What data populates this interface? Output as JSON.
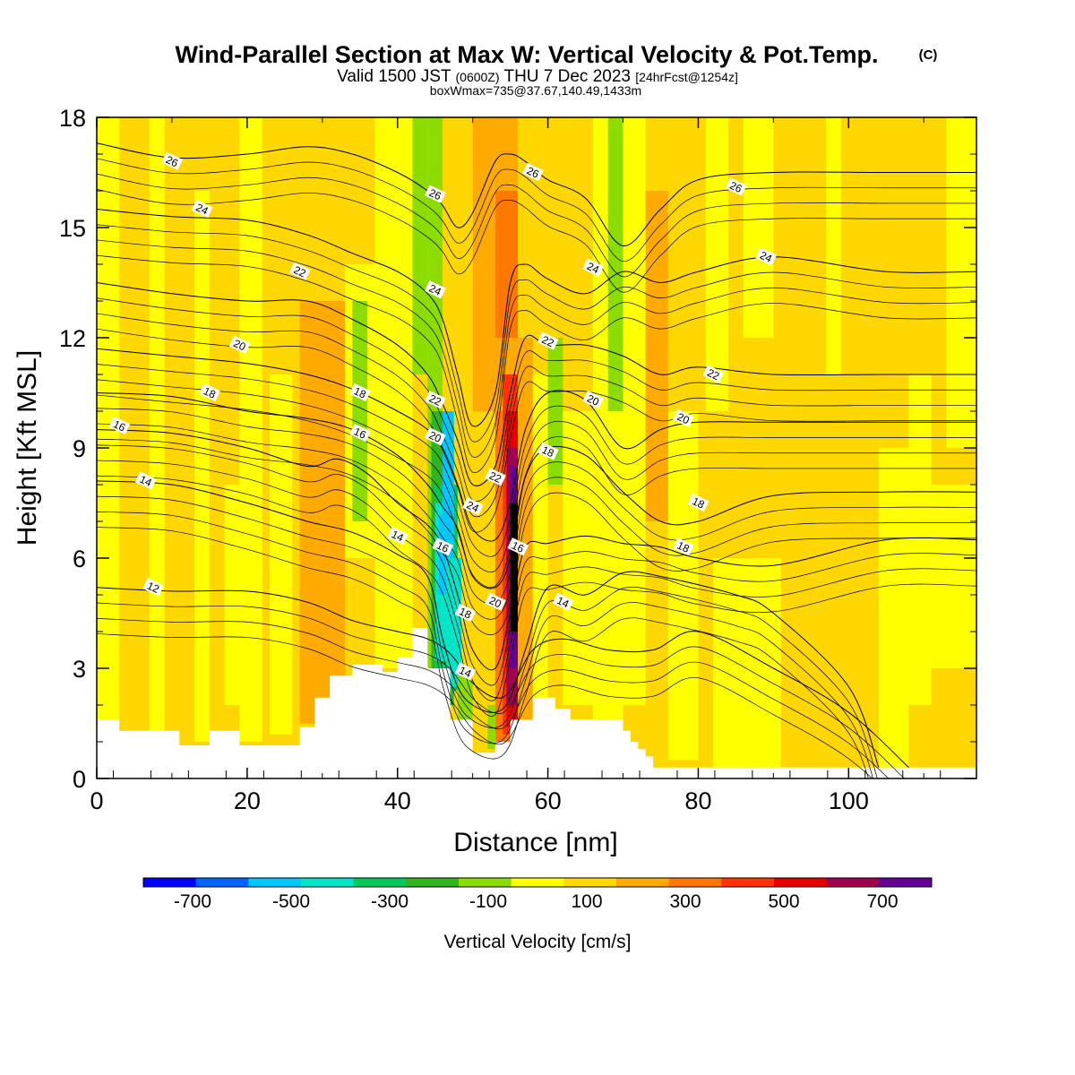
{
  "title": {
    "main": "Wind-Parallel Section at Max W: Vertical Velocity & Pot.Temp.",
    "copyright": "(C)",
    "valid_a": "Valid 1500 JST",
    "valid_z": "(0600Z)",
    "valid_b": "THU 7 Dec 2023",
    "forecast": "[24hrFcst@1254z]",
    "boxinfo": "boxWmax=735@37.67,140.49,1433m"
  },
  "colors": {
    "frame": "#000000",
    "terrain": "#ffffff",
    "contour_line": "#000000",
    "bins": [
      "#0000ff",
      "#0064ff",
      "#00c8ff",
      "#00e4c8",
      "#00c85a",
      "#32b41e",
      "#8cdc00",
      "#ffff00",
      "#ffd700",
      "#ffaa00",
      "#ff7800",
      "#ff3200",
      "#e60000",
      "#a00050",
      "#640096"
    ]
  },
  "chart_data": {
    "type": "heatmap",
    "xlabel": "Distance [nm]",
    "ylabel": "Height [Kft MSL]",
    "xlim": [
      0,
      117
    ],
    "ylim": [
      0,
      18
    ],
    "x_ticks": [
      "0",
      "20",
      "40",
      "60",
      "80",
      "100"
    ],
    "y_ticks": [
      "0",
      "3",
      "6",
      "9",
      "12",
      "15",
      "18"
    ],
    "colorbar": {
      "label": "Vertical Velocity [cm/s]",
      "bounds": [
        -800,
        -700,
        -600,
        -500,
        -400,
        -300,
        -200,
        -100,
        0,
        100,
        200,
        300,
        400,
        500,
        600,
        700,
        800
      ],
      "tick_labels": [
        "-700",
        "-500",
        "-300",
        "-100",
        "100",
        "300",
        "500",
        "700"
      ]
    },
    "terrain_profile": {
      "x": [
        0,
        3,
        3,
        11,
        11,
        15,
        15,
        19,
        19,
        27,
        27,
        29,
        29,
        31,
        31,
        34,
        34,
        38,
        38,
        40,
        40,
        42,
        42,
        44,
        44,
        47,
        47,
        50,
        50,
        53,
        53,
        55,
        55,
        58,
        58,
        61,
        61,
        63,
        63,
        70,
        70,
        71,
        71,
        72,
        72,
        73,
        73,
        74,
        74,
        75,
        75,
        117
      ],
      "z": [
        1.6,
        1.6,
        1.3,
        1.3,
        0.9,
        0.9,
        1.3,
        1.3,
        0.9,
        0.9,
        1.4,
        1.4,
        2.2,
        2.2,
        2.8,
        2.8,
        3.1,
        3.1,
        2.9,
        2.9,
        3.3,
        3.3,
        4.1,
        4.1,
        3.0,
        3.0,
        1.6,
        1.6,
        0.7,
        0.7,
        1.0,
        1.0,
        1.6,
        1.6,
        2.2,
        2.2,
        1.9,
        1.9,
        1.6,
        1.6,
        1.3,
        1.3,
        1.0,
        1.0,
        0.8,
        0.8,
        0.6,
        0.6,
        0.3,
        0.3,
        0.3,
        0.3
      ]
    },
    "vertical_velocity_cells": [
      {
        "x": [
          0,
          117
        ],
        "z": [
          0,
          18
        ],
        "w": 50
      },
      {
        "x": [
          0,
          3
        ],
        "z": [
          0.9,
          18
        ],
        "w": -50
      },
      {
        "x": [
          7,
          9
        ],
        "z": [
          1,
          18
        ],
        "w": -50
      },
      {
        "x": [
          13,
          15
        ],
        "z": [
          1,
          16
        ],
        "w": -50
      },
      {
        "x": [
          19,
          22
        ],
        "z": [
          1,
          18
        ],
        "w": -50
      },
      {
        "x": [
          17,
          19.5
        ],
        "z": [
          2,
          8
        ],
        "w": -50
      },
      {
        "x": [
          27,
          33
        ],
        "z": [
          1.5,
          13
        ],
        "w": 150
      },
      {
        "x": [
          28,
          32
        ],
        "z": [
          3,
          10
        ],
        "w": 150
      },
      {
        "x": [
          33,
          37
        ],
        "z": [
          6,
          14
        ],
        "w": -50
      },
      {
        "x": [
          34,
          36
        ],
        "z": [
          7,
          13
        ],
        "w": -150
      },
      {
        "x": [
          23,
          26
        ],
        "z": [
          1.2,
          11
        ],
        "w": -50
      },
      {
        "x": [
          37,
          42
        ],
        "z": [
          3,
          18
        ],
        "w": -50
      },
      {
        "x": [
          42,
          44
        ],
        "z": [
          11,
          18
        ],
        "w": -150
      },
      {
        "x": [
          44,
          46
        ],
        "z": [
          1.5,
          18
        ],
        "w": -150
      },
      {
        "x": [
          44.5,
          47.5
        ],
        "z": [
          2,
          10
        ],
        "w": -250
      },
      {
        "x": [
          45,
          48
        ],
        "z": [
          2.4,
          8
        ],
        "w": -350
      },
      {
        "x": [
          45,
          47.5
        ],
        "z": [
          3.2,
          7.5
        ],
        "w": -450
      },
      {
        "x": [
          45.5,
          47.5
        ],
        "z": [
          5,
          7.2
        ],
        "w": -550
      },
      {
        "x": [
          46,
          47.5
        ],
        "z": [
          7,
          10
        ],
        "w": -550
      },
      {
        "x": [
          46.5,
          48.5
        ],
        "z": [
          2.5,
          6
        ],
        "w": -450
      },
      {
        "x": [
          48,
          50
        ],
        "z": [
          1.4,
          3
        ],
        "w": -150
      },
      {
        "x": [
          50,
          56
        ],
        "z": [
          10,
          18
        ],
        "w": 150
      },
      {
        "x": [
          53,
          56
        ],
        "z": [
          12,
          16
        ],
        "w": 250
      },
      {
        "x": [
          53,
          55
        ],
        "z": [
          1,
          10
        ],
        "w": 250
      },
      {
        "x": [
          54,
          56
        ],
        "z": [
          1.2,
          11
        ],
        "w": 350
      },
      {
        "x": [
          54.5,
          56
        ],
        "z": [
          1.4,
          10
        ],
        "w": 450
      },
      {
        "x": [
          54.5,
          56
        ],
        "z": [
          2,
          9
        ],
        "w": 550
      },
      {
        "x": [
          55,
          56
        ],
        "z": [
          3,
          8.5
        ],
        "w": 650
      },
      {
        "x": [
          55,
          56
        ],
        "z": [
          4,
          7.5
        ],
        "w": 750
      },
      {
        "x": [
          52,
          53
        ],
        "z": [
          0.8,
          2
        ],
        "w": -150
      },
      {
        "x": [
          56,
          58
        ],
        "z": [
          1.2,
          12
        ],
        "w": 150
      },
      {
        "x": [
          58,
          60
        ],
        "z": [
          1.6,
          11
        ],
        "w": -50
      },
      {
        "x": [
          60,
          62
        ],
        "z": [
          8,
          12
        ],
        "w": -150
      },
      {
        "x": [
          62,
          66
        ],
        "z": [
          2,
          10
        ],
        "w": -50
      },
      {
        "x": [
          66,
          70
        ],
        "z": [
          1.6,
          18
        ],
        "w": -50
      },
      {
        "x": [
          68,
          70
        ],
        "z": [
          10,
          18
        ],
        "w": -150
      },
      {
        "x": [
          70,
          73
        ],
        "z": [
          2,
          18
        ],
        "w": -50
      },
      {
        "x": [
          73,
          76
        ],
        "z": [
          7,
          16
        ],
        "w": 150
      },
      {
        "x": [
          76,
          80
        ],
        "z": [
          0.5,
          10
        ],
        "w": -50
      },
      {
        "x": [
          81,
          84
        ],
        "z": [
          10,
          18
        ],
        "w": -50
      },
      {
        "x": [
          86,
          90
        ],
        "z": [
          12,
          18
        ],
        "w": -50
      },
      {
        "x": [
          82,
          91
        ],
        "z": [
          0.3,
          6
        ],
        "w": -50
      },
      {
        "x": [
          97,
          99
        ],
        "z": [
          11,
          18
        ],
        "w": -50
      },
      {
        "x": [
          104,
          108
        ],
        "z": [
          0.3,
          9
        ],
        "w": -50
      },
      {
        "x": [
          108,
          111
        ],
        "z": [
          2,
          11
        ],
        "w": -50
      },
      {
        "x": [
          111,
          117
        ],
        "z": [
          3,
          8
        ],
        "w": -50
      },
      {
        "x": [
          113,
          117
        ],
        "z": [
          9,
          18
        ],
        "w": -50
      }
    ],
    "potential_temperature_contours": [
      {
        "level": 12,
        "x": [
          0,
          10,
          20,
          28,
          34,
          40,
          44,
          47,
          50,
          53,
          55,
          58,
          62,
          68,
          74,
          80,
          90,
          100,
          108
        ],
        "z": [
          5.2,
          5.1,
          5.1,
          4.8,
          4.3,
          4.0,
          3.8,
          3.4,
          2.6,
          2.2,
          2.4,
          3.5,
          3.8,
          3.5,
          3.5,
          4.0,
          3.0,
          1.8,
          0.3
        ]
      },
      {
        "level": 14,
        "x": [
          0,
          10,
          20,
          28,
          34,
          40,
          44,
          46,
          48,
          50,
          53,
          55,
          57,
          60,
          65,
          70,
          75,
          85,
          90,
          100,
          104
        ],
        "z": [
          8.1,
          8.0,
          7.5,
          7.0,
          6.7,
          6.1,
          5.5,
          3.8,
          2.5,
          2.0,
          1.8,
          2.2,
          3.5,
          5.2,
          5.0,
          5.6,
          5.5,
          5.0,
          4.5,
          2.5,
          0.3
        ]
      },
      {
        "level": 16,
        "x": [
          0,
          10,
          20,
          28,
          32,
          36,
          40,
          44,
          46,
          48,
          50,
          53,
          55,
          57,
          60,
          65,
          70,
          75,
          80,
          90,
          105,
          117
        ],
        "z": [
          9.5,
          9.4,
          9.0,
          8.5,
          8.7,
          8.3,
          7.5,
          6.9,
          6.3,
          5.0,
          3.5,
          3.0,
          4.5,
          6.3,
          6.4,
          6.6,
          6.4,
          6.3,
          6.0,
          5.8,
          6.5,
          6.5
        ]
      },
      {
        "level": 18,
        "x": [
          0,
          10,
          20,
          28,
          34,
          40,
          44,
          46,
          48,
          50,
          53,
          55,
          57,
          60,
          65,
          70,
          75,
          80,
          90,
          105,
          117
        ],
        "z": [
          10.5,
          10.4,
          10.0,
          9.8,
          9.5,
          8.8,
          8.0,
          7.4,
          6.8,
          5.5,
          5.2,
          6.0,
          8.2,
          9.0,
          8.8,
          7.8,
          7.0,
          7.0,
          7.7,
          7.8,
          7.8
        ]
      },
      {
        "level": 20,
        "x": [
          0,
          10,
          20,
          28,
          34,
          40,
          44,
          46,
          48,
          50,
          53,
          55,
          57,
          60,
          65,
          70,
          75,
          80,
          90,
          105,
          117
        ],
        "z": [
          11.7,
          11.5,
          11.3,
          11.0,
          10.6,
          10.0,
          9.5,
          9.0,
          8.0,
          6.8,
          6.5,
          7.5,
          9.5,
          10.5,
          10.3,
          9.0,
          9.5,
          9.7,
          9.7,
          9.7,
          9.7
        ]
      },
      {
        "level": 22,
        "x": [
          0,
          10,
          20,
          28,
          34,
          40,
          44,
          46,
          48,
          50,
          53,
          55,
          57,
          60,
          65,
          70,
          75,
          80,
          90,
          105,
          117
        ],
        "z": [
          13.5,
          13.2,
          13.0,
          13.0,
          12.5,
          11.8,
          11.0,
          10.2,
          9.2,
          8.0,
          8.5,
          10.5,
          12.0,
          11.8,
          11.8,
          11.5,
          11.0,
          11.2,
          11.0,
          11.0,
          11.0
        ]
      },
      {
        "level": 24,
        "x": [
          0,
          10,
          20,
          28,
          34,
          40,
          44,
          46,
          48,
          50,
          53,
          55,
          57,
          60,
          65,
          70,
          75,
          80,
          90,
          105,
          117
        ],
        "z": [
          15.5,
          15.3,
          15.2,
          14.8,
          14.3,
          13.8,
          13.2,
          12.5,
          11.0,
          9.6,
          10.5,
          13.5,
          14.0,
          13.6,
          13.2,
          13.8,
          13.5,
          13.8,
          14.2,
          13.8,
          13.8
        ]
      },
      {
        "level": 26,
        "x": [
          0,
          10,
          20,
          28,
          34,
          40,
          44,
          46,
          48,
          50,
          53,
          55,
          57,
          60,
          65,
          70,
          75,
          80,
          90,
          105,
          117
        ],
        "z": [
          17.3,
          16.9,
          17.0,
          17.2,
          17.0,
          16.5,
          16.0,
          15.6,
          15.0,
          15.4,
          16.8,
          17.0,
          16.8,
          16.3,
          15.8,
          14.5,
          15.5,
          16.3,
          16.5,
          16.5,
          16.5
        ]
      }
    ],
    "contour_label_positions": [
      {
        "t": "26",
        "x": 10,
        "z": 16.8
      },
      {
        "t": "24",
        "x": 14,
        "z": 15.5
      },
      {
        "t": "22",
        "x": 27,
        "z": 13.8
      },
      {
        "t": "20",
        "x": 19,
        "z": 11.8
      },
      {
        "t": "18",
        "x": 15,
        "z": 10.5
      },
      {
        "t": "16",
        "x": 3,
        "z": 9.6
      },
      {
        "t": "14",
        "x": 6.5,
        "z": 8.1
      },
      {
        "t": "12",
        "x": 7.5,
        "z": 5.2
      },
      {
        "t": "18",
        "x": 35,
        "z": 10.5
      },
      {
        "t": "16",
        "x": 35,
        "z": 9.4
      },
      {
        "t": "14",
        "x": 40,
        "z": 6.6
      },
      {
        "t": "26",
        "x": 45,
        "z": 15.9
      },
      {
        "t": "24",
        "x": 45,
        "z": 13.3
      },
      {
        "t": "22",
        "x": 45,
        "z": 10.3
      },
      {
        "t": "20",
        "x": 45,
        "z": 9.3
      },
      {
        "t": "16",
        "x": 46,
        "z": 6.3
      },
      {
        "t": "18",
        "x": 49,
        "z": 4.5
      },
      {
        "t": "14",
        "x": 49,
        "z": 2.9
      },
      {
        "t": "24",
        "x": 50,
        "z": 7.4
      },
      {
        "t": "22",
        "x": 53,
        "z": 8.2
      },
      {
        "t": "20",
        "x": 53,
        "z": 4.8
      },
      {
        "t": "16",
        "x": 56,
        "z": 6.3
      },
      {
        "t": "26",
        "x": 58,
        "z": 16.5
      },
      {
        "t": "22",
        "x": 60,
        "z": 11.9
      },
      {
        "t": "24",
        "x": 66,
        "z": 13.9
      },
      {
        "t": "20",
        "x": 66,
        "z": 10.3
      },
      {
        "t": "18",
        "x": 60,
        "z": 8.9
      },
      {
        "t": "14",
        "x": 62,
        "z": 4.8
      },
      {
        "t": "20",
        "x": 78,
        "z": 9.8
      },
      {
        "t": "18",
        "x": 80,
        "z": 7.5
      },
      {
        "t": "18",
        "x": 78,
        "z": 6.3
      },
      {
        "t": "22",
        "x": 82,
        "z": 11.0
      },
      {
        "t": "24",
        "x": 89,
        "z": 14.2
      },
      {
        "t": "26",
        "x": 85,
        "z": 16.1
      }
    ]
  }
}
